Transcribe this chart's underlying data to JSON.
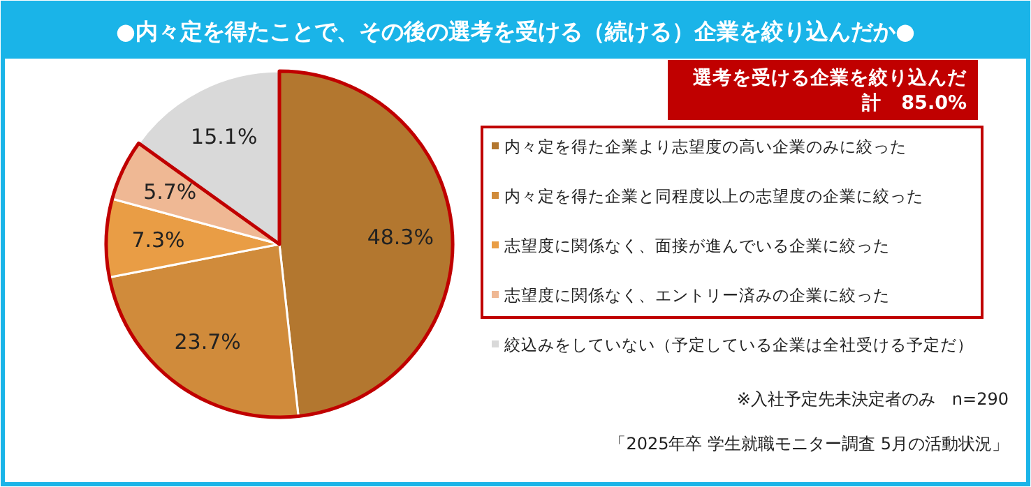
{
  "chart_data": {
    "type": "pie",
    "title": "●内々定を得たことで、その後の選考を受ける（続ける）企業を絞り込んだか●",
    "categories": [
      "内々定を得た企業より志望度の高い企業のみに絞った",
      "内々定を得た企業と同程度以上の志望度の企業に絞った",
      "志望度に関係なく、面接が進んでいる企業に絞った",
      "志望度に関係なく、エントリー済みの企業に絞った",
      "絞込みをしていない（予定している企業は全社受ける予定だ）"
    ],
    "values": [
      48.3,
      23.7,
      7.3,
      5.7,
      15.1
    ],
    "colors": [
      "#b3772f",
      "#d08b3b",
      "#e99d45",
      "#efb894",
      "#d9d9d9"
    ],
    "value_labels": [
      "48.3%",
      "23.7%",
      "7.3%",
      "5.7%",
      "15.1%"
    ],
    "legend": "right",
    "annotations": [
      "選考を受ける企業を絞り込んだ",
      "計　85.0%",
      "※入社予定先未決定者のみ　n=290",
      "「2025年卒 学生就職モニター調査 5月の活動状況」"
    ]
  }
}
